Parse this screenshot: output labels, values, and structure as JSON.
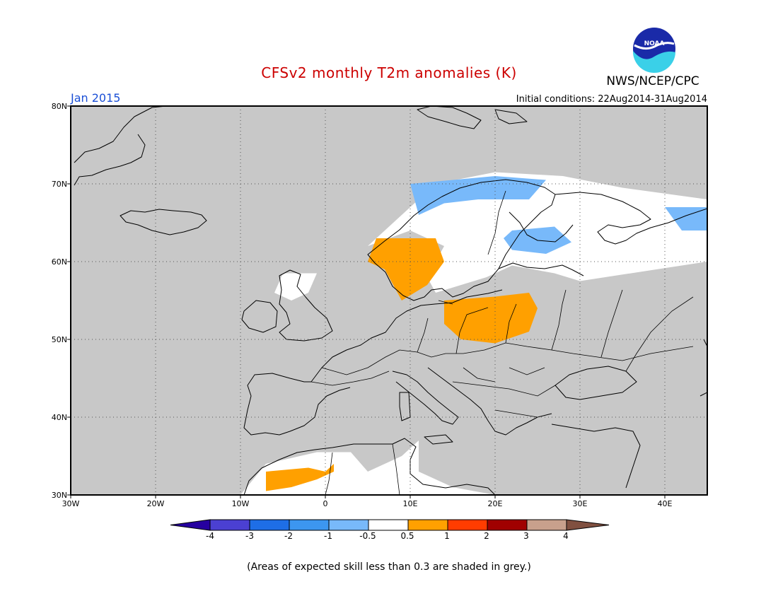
{
  "title": "CFSv2 monthly T2m anomalies (K)",
  "valid_month": "Jan 2015",
  "initial_conditions": "Initial conditions: 22Aug2014-31Aug2014",
  "agency": "NWS/NCEP/CPC",
  "logo_text": "NOAA",
  "footnote": "(Areas of expected skill less than 0.3 are shaded in grey.)",
  "map": {
    "lon_range": [
      -30,
      45
    ],
    "lat_range": [
      30,
      80
    ],
    "lon_ticks": [
      -30,
      -20,
      -10,
      0,
      10,
      20,
      30,
      40
    ],
    "lon_labels": [
      "30W",
      "20W",
      "10W",
      "0",
      "10E",
      "20E",
      "30E",
      "40E"
    ],
    "lat_ticks": [
      30,
      40,
      50,
      60,
      70,
      80
    ],
    "lat_labels": [
      "30N",
      "40N",
      "50N",
      "60N",
      "70N",
      "80N"
    ],
    "grid": "dotted",
    "background_color": "#c8c8c8",
    "anomaly_regions": [
      {
        "level": "-1 to -0.5",
        "color": "#78b9fa",
        "area": "northern Scandinavia",
        "polygon": [
          [
            10,
            70
          ],
          [
            20,
            71
          ],
          [
            26,
            70.5
          ],
          [
            24,
            68
          ],
          [
            18,
            68
          ],
          [
            14,
            67.5
          ],
          [
            11,
            66
          ]
        ]
      },
      {
        "level": "-1 to -0.5",
        "color": "#78b9fa",
        "area": "southern Finland",
        "polygon": [
          [
            22,
            64
          ],
          [
            27,
            64.5
          ],
          [
            29,
            62.5
          ],
          [
            26,
            61
          ],
          [
            22,
            61.5
          ],
          [
            21,
            63
          ]
        ]
      },
      {
        "level": "-1 to -0.5",
        "color": "#78b9fa",
        "area": "far northwest Russia",
        "polygon": [
          [
            40,
            67
          ],
          [
            45,
            67
          ],
          [
            45,
            64
          ],
          [
            42,
            64
          ]
        ]
      },
      {
        "level": "0.5 to 1",
        "color": "#ffa000",
        "area": "southern Norway and Denmark",
        "polygon": [
          [
            6,
            63
          ],
          [
            13,
            63
          ],
          [
            14,
            60
          ],
          [
            12,
            57
          ],
          [
            9,
            55
          ],
          [
            8,
            57
          ],
          [
            7,
            59
          ],
          [
            5,
            60
          ]
        ]
      },
      {
        "level": "0.5 to 1",
        "color": "#ffa000",
        "area": "Poland and Belarus",
        "polygon": [
          [
            14,
            55
          ],
          [
            20,
            55.5
          ],
          [
            24,
            56
          ],
          [
            25,
            54
          ],
          [
            24,
            51
          ],
          [
            20,
            49.5
          ],
          [
            16,
            50
          ],
          [
            14,
            52
          ]
        ]
      },
      {
        "level": "0.5 to 1",
        "color": "#ffa000",
        "area": "western Algeria",
        "polygon": [
          [
            -7,
            33
          ],
          [
            -2,
            33.5
          ],
          [
            0,
            33
          ],
          [
            1,
            34
          ],
          [
            1,
            33
          ],
          [
            -1,
            32
          ],
          [
            -4,
            31
          ],
          [
            -7,
            30.5
          ]
        ]
      }
    ],
    "near_zero_regions": [
      {
        "level": "-0.5 to 0.5",
        "color": "#ffffff",
        "area": "Scandinavia and Finland",
        "polygon": [
          [
            5,
            62
          ],
          [
            10,
            67
          ],
          [
            13,
            70
          ],
          [
            20,
            71.5
          ],
          [
            28,
            71
          ],
          [
            35,
            69.5
          ],
          [
            45,
            68
          ],
          [
            45,
            60
          ],
          [
            30,
            57.5
          ],
          [
            27,
            58.5
          ],
          [
            22,
            59.5
          ],
          [
            19,
            58
          ],
          [
            16,
            57
          ],
          [
            13,
            56
          ],
          [
            12,
            58
          ],
          [
            14,
            62
          ],
          [
            10,
            64
          ]
        ]
      },
      {
        "level": "-0.5 to 0.5",
        "color": "#ffffff",
        "area": "northern Britain",
        "polygon": [
          [
            -5,
            58.5
          ],
          [
            -1,
            58.5
          ],
          [
            -2,
            56
          ],
          [
            -4,
            55
          ],
          [
            -6,
            56
          ]
        ]
      },
      {
        "level": "-0.5 to 0.5",
        "color": "#ffffff",
        "area": "northern Africa",
        "polygon": [
          [
            -10,
            30
          ],
          [
            -7,
            34
          ],
          [
            -1,
            35.5
          ],
          [
            3,
            35.5
          ],
          [
            5,
            33
          ],
          [
            9,
            35
          ],
          [
            11,
            37
          ],
          [
            11,
            33
          ],
          [
            15,
            31
          ],
          [
            20,
            30
          ]
        ]
      }
    ]
  },
  "colorbar": {
    "colors": [
      "#2600a0",
      "#4b40d2",
      "#1e6ee6",
      "#3c96f0",
      "#78b9fa",
      "#ffffff",
      "#ffa000",
      "#ff3c00",
      "#a00000",
      "#c8a08c",
      "#805040"
    ],
    "labels": [
      "-4",
      "-3",
      "-2",
      "-1",
      "-0.5",
      "0.5",
      "1",
      "2",
      "3",
      "4"
    ]
  }
}
